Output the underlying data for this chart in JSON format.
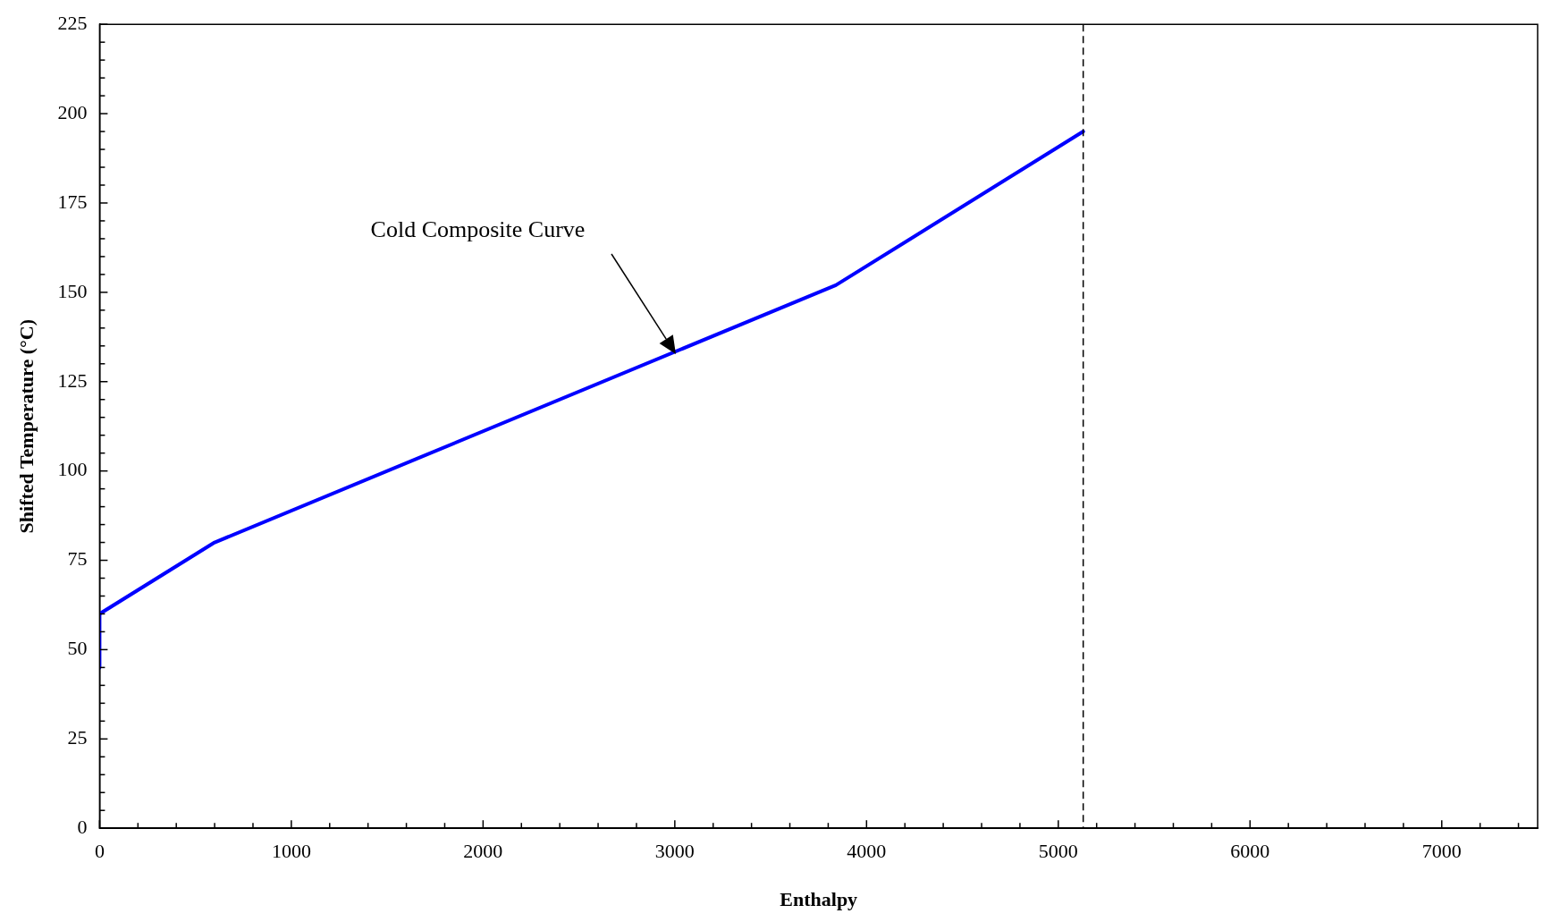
{
  "chart_data": {
    "type": "line",
    "xlabel": "Enthalpy",
    "ylabel": "Shifted Temperature (°C)",
    "series": [
      {
        "color": "#0000ff",
        "x": [
          0,
          0,
          600,
          3840,
          5130
        ],
        "values": [
          45,
          60,
          80,
          152,
          195
        ]
      }
    ],
    "xlim": [
      0,
      7500
    ],
    "ylim": [
      0,
      225
    ],
    "xticks": [
      0,
      {
        "value": 200,
        "label": null
      },
      {
        "value": 400,
        "label": null
      },
      {
        "value": 600,
        "label": null
      },
      {
        "value": 800,
        "label": null
      },
      1000,
      {
        "value": 1200,
        "label": null
      },
      {
        "value": 1400,
        "label": null
      },
      {
        "value": 1600,
        "label": null
      },
      {
        "value": 1800,
        "label": null
      },
      2000,
      {
        "value": 2200,
        "label": null
      },
      {
        "value": 2400,
        "label": null
      },
      {
        "value": 2600,
        "label": null
      },
      {
        "value": 2800,
        "label": null
      },
      3000,
      {
        "value": 3200,
        "label": null
      },
      {
        "value": 3400,
        "label": null
      },
      {
        "value": 3600,
        "label": null
      },
      {
        "value": 3800,
        "label": null
      },
      4000,
      {
        "value": 4200,
        "label": null
      },
      {
        "value": 4400,
        "label": null
      },
      {
        "value": 4600,
        "label": null
      },
      {
        "value": 4800,
        "label": null
      },
      5000,
      {
        "value": 5200,
        "label": null
      },
      {
        "value": 5400,
        "label": null
      },
      {
        "value": 5600,
        "label": null
      },
      {
        "value": 5800,
        "label": null
      },
      6000,
      {
        "value": 6200,
        "label": null
      },
      {
        "value": 6400,
        "label": null
      },
      {
        "value": 6600,
        "label": null
      },
      {
        "value": 6800,
        "label": null
      },
      7000,
      {
        "value": 7200,
        "label": null
      },
      {
        "value": 7400,
        "label": null
      }
    ],
    "yticks": [
      0,
      {
        "value": 5,
        "label": null
      },
      {
        "value": 10,
        "label": null
      },
      {
        "value": 15,
        "label": null
      },
      {
        "value": 20,
        "label": null
      },
      25,
      {
        "value": 30,
        "label": null
      },
      {
        "value": 35,
        "label": null
      },
      {
        "value": 40,
        "label": null
      },
      {
        "value": 45,
        "label": null
      },
      50,
      {
        "value": 55,
        "label": null
      },
      {
        "value": 60,
        "label": null
      },
      {
        "value": 65,
        "label": null
      },
      {
        "value": 70,
        "label": null
      },
      75,
      {
        "value": 80,
        "label": null
      },
      {
        "value": 85,
        "label": null
      },
      {
        "value": 90,
        "label": null
      },
      {
        "value": 95,
        "label": null
      },
      100,
      {
        "value": 105,
        "label": null
      },
      {
        "value": 110,
        "label": null
      },
      {
        "value": 115,
        "label": null
      },
      {
        "value": 120,
        "label": null
      },
      125,
      {
        "value": 130,
        "label": null
      },
      {
        "value": 135,
        "label": null
      },
      {
        "value": 140,
        "label": null
      },
      {
        "value": 145,
        "label": null
      },
      150,
      {
        "value": 155,
        "label": null
      },
      {
        "value": 160,
        "label": null
      },
      {
        "value": 165,
        "label": null
      },
      {
        "value": 170,
        "label": null
      },
      175,
      {
        "value": 180,
        "label": null
      },
      {
        "value": 185,
        "label": null
      },
      {
        "value": 190,
        "label": null
      },
      {
        "value": 195,
        "label": null
      },
      200,
      {
        "value": 205,
        "label": null
      },
      {
        "value": 210,
        "label": null
      },
      {
        "value": 215,
        "label": null
      },
      {
        "value": 220,
        "label": null
      },
      225
    ],
    "ref_lines": [
      {
        "axis": "x",
        "value": 5130,
        "color": "#000000",
        "line_style": "dashed"
      }
    ],
    "annotations": [
      "Cold Composite Curve"
    ],
    "grid": false,
    "legend": false,
    "marker": "none",
    "line_style": "solid"
  }
}
